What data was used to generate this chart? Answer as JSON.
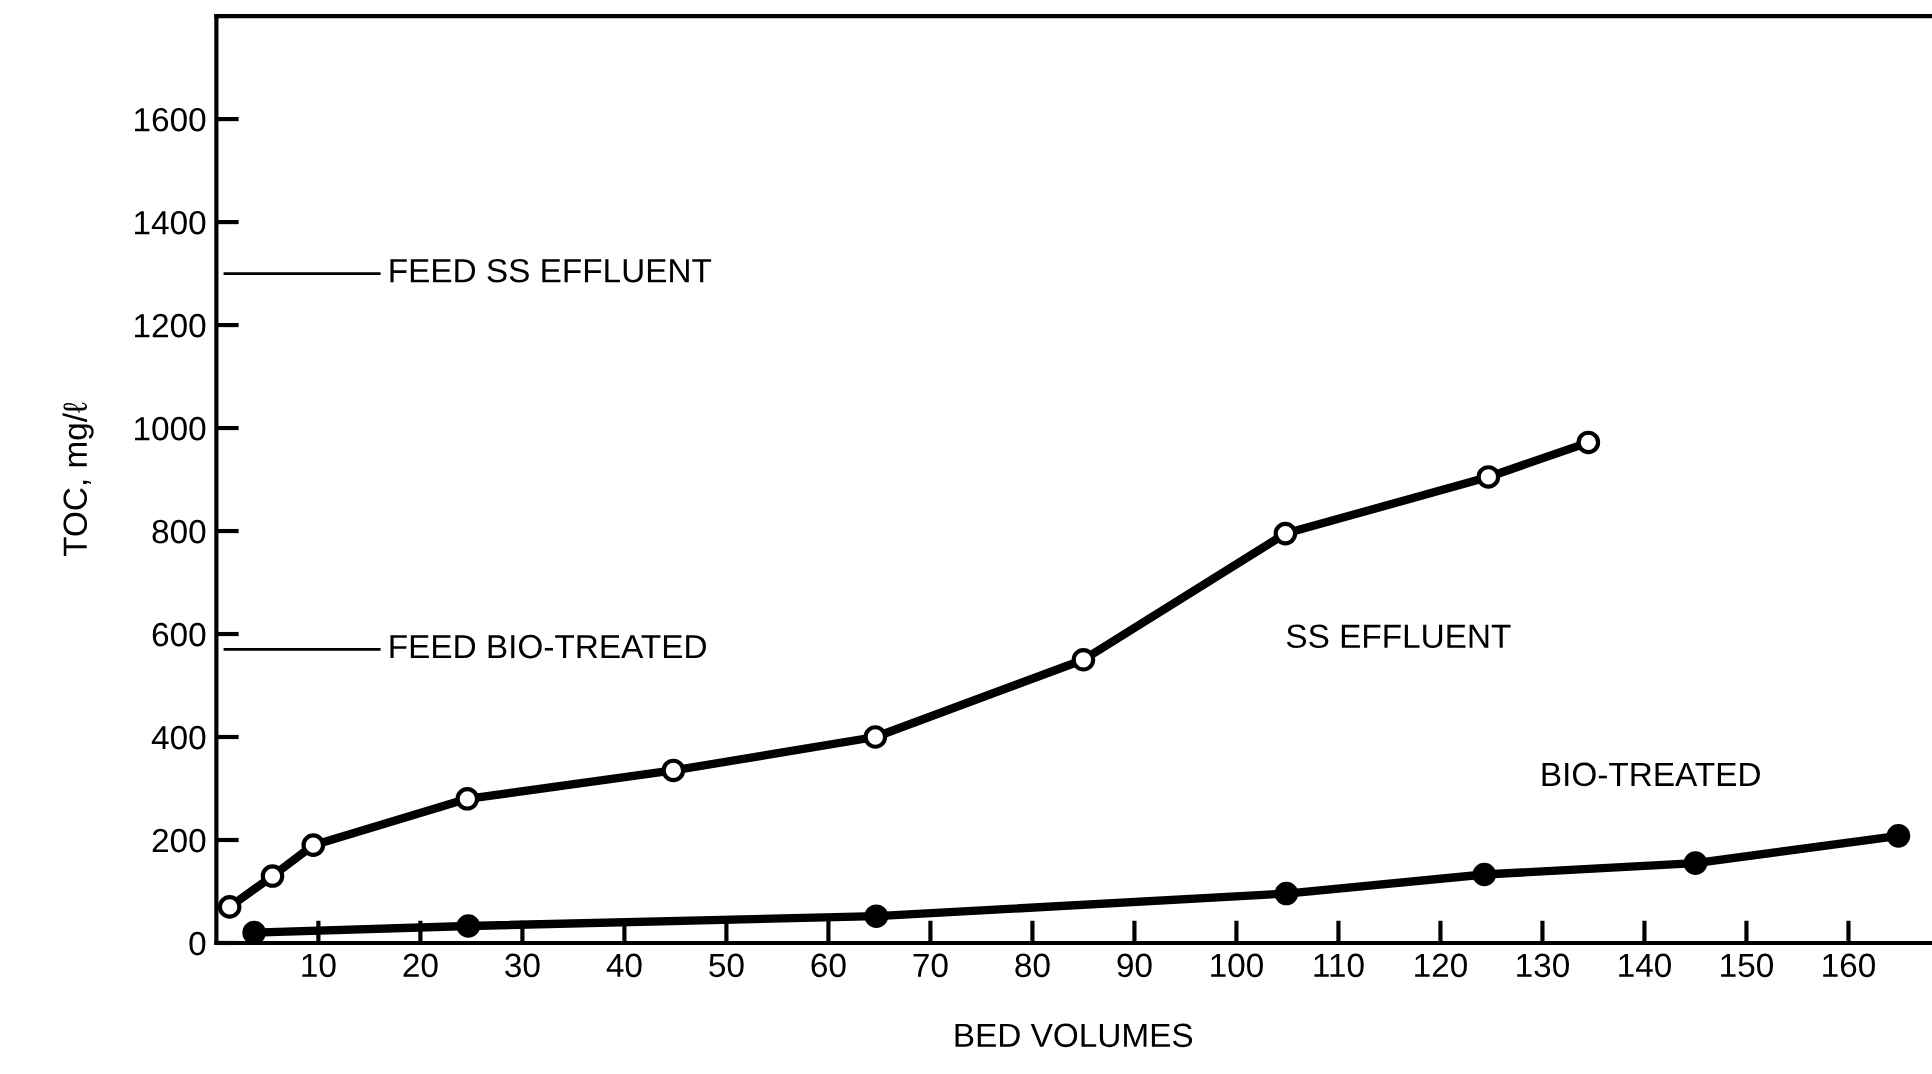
{
  "chart_data": {
    "type": "line",
    "xlabel": "BED VOLUMES",
    "ylabel": "TOC, mg/ℓ",
    "xlim": [
      0,
      168
    ],
    "xticks": [
      10,
      20,
      30,
      40,
      50,
      60,
      70,
      80,
      90,
      100,
      110,
      120,
      130,
      140,
      150,
      160
    ],
    "ylim": [
      0,
      1800
    ],
    "yticks": [
      0,
      200,
      400,
      600,
      800,
      1000,
      1200,
      1400,
      1600
    ],
    "marker": "circle",
    "line_style": "solid",
    "grid": false,
    "legend": false,
    "ref_lines": [
      {
        "axis": "y",
        "value": 1300,
        "label": "FEED SS EFFLUENT",
        "color": "#000000"
      },
      {
        "axis": "y",
        "value": 570,
        "label": "FEED BIO-TREATED",
        "color": "#000000"
      }
    ],
    "series": [
      {
        "name": "SS EFFLUENT",
        "color": "#000000",
        "x": [
          1.3,
          5.5,
          9.5,
          24.6,
          44.8,
          64.6,
          85,
          104.8,
          124.7,
          134.5
        ],
        "values": [
          70,
          130,
          190,
          280,
          335,
          400,
          550,
          795,
          905,
          972
        ]
      },
      {
        "name": "BIO-TREATED",
        "color": "#000000",
        "x": [
          3.7,
          24.7,
          64.7,
          104.9,
          124.3,
          145,
          164.9
        ],
        "values": [
          20,
          33,
          52,
          96,
          133,
          155,
          208
        ]
      }
    ]
  }
}
